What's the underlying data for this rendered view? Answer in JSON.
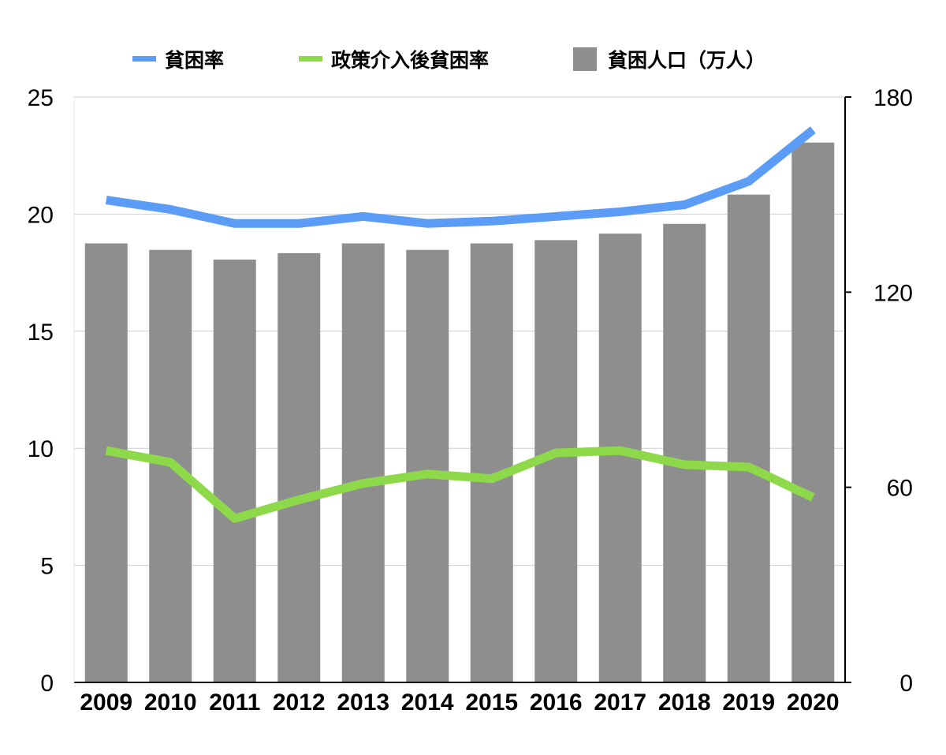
{
  "chart_data": {
    "type": "bar",
    "categories": [
      "2009",
      "2010",
      "2011",
      "2012",
      "2013",
      "2014",
      "2015",
      "2016",
      "2017",
      "2018",
      "2019",
      "2020"
    ],
    "series": [
      {
        "name": "貧困率",
        "kind": "line",
        "axis": "left",
        "color": "#5B9CF6",
        "values": [
          20.6,
          20.2,
          19.6,
          19.6,
          19.9,
          19.6,
          19.7,
          19.9,
          20.1,
          20.4,
          21.4,
          23.6
        ]
      },
      {
        "name": "政策介入後貧困率",
        "kind": "line",
        "axis": "left",
        "color": "#8ED94A",
        "values": [
          9.9,
          9.4,
          7.0,
          7.8,
          8.5,
          8.9,
          8.7,
          9.8,
          9.9,
          9.3,
          9.2,
          7.9
        ]
      },
      {
        "name": "貧困人口（万人）",
        "kind": "bar",
        "axis": "right",
        "color": "#8E8E8E",
        "values": [
          135,
          133,
          130,
          132,
          135,
          133,
          135,
          136,
          138,
          141,
          150,
          166
        ]
      }
    ],
    "yleft": {
      "lim": [
        0,
        25
      ],
      "ticks": [
        "0",
        "5",
        "10",
        "15",
        "20",
        "25"
      ]
    },
    "yright": {
      "lim": [
        0,
        180
      ],
      "ticks": [
        "0",
        "60",
        "120",
        "180"
      ]
    },
    "grid": true,
    "legend_position": "top"
  }
}
